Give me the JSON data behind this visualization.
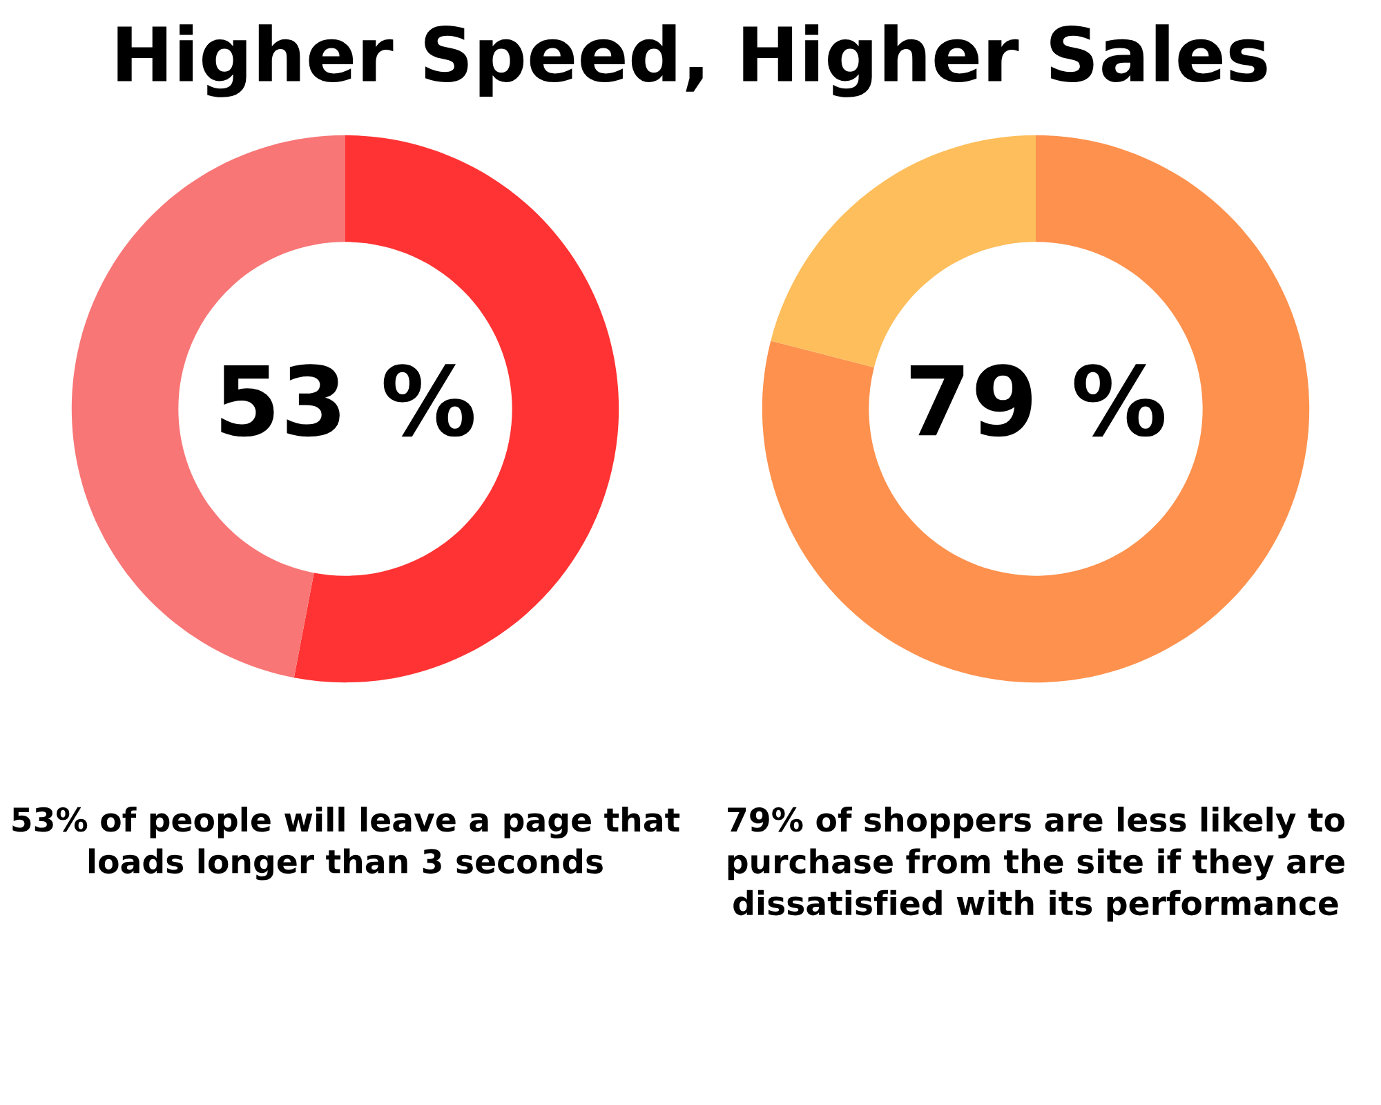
{
  "chart_data": [
    {
      "type": "donut",
      "title": "Higher Speed, Higher Sales",
      "categories": [
        null,
        null
      ],
      "values": [
        53,
        47
      ],
      "colors": [
        "#ff3333",
        "#f87676"
      ],
      "value_labels": [
        "53 %",
        null
      ],
      "annotations": [
        "53% of people will leave a page that loads longer than 3 seconds"
      ]
    },
    {
      "type": "donut",
      "categories": [
        null,
        null
      ],
      "values": [
        79,
        21
      ],
      "colors": [
        "#fd914d",
        "#fdbe5b"
      ],
      "value_labels": [
        "79 %",
        null
      ],
      "annotations": [
        "79% of shoppers are less likely to purchase from the site if they are dissatisfied with its performance"
      ]
    }
  ]
}
